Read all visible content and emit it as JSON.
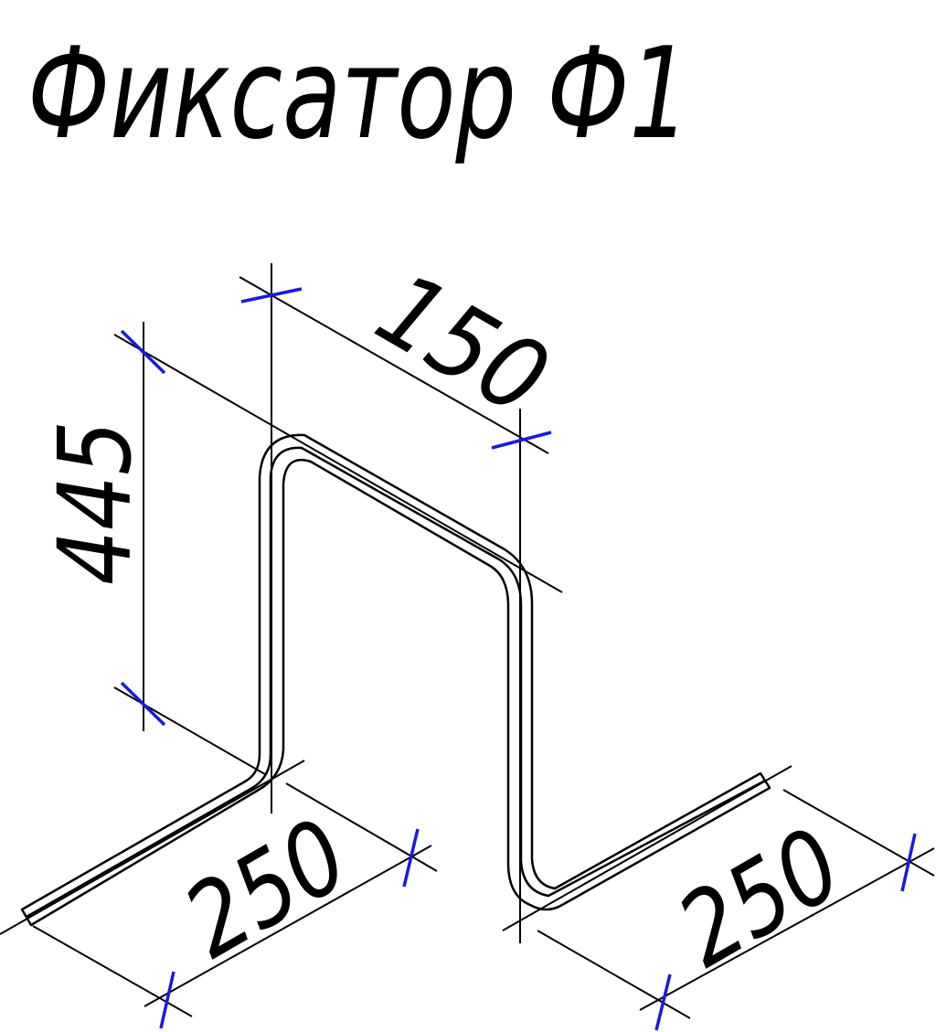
{
  "title": "Фиксатор Ф1",
  "dimensions": {
    "width_top": "150",
    "height": "445",
    "leg_left": "250",
    "leg_right": "250"
  },
  "colors": {
    "line": "#000000",
    "tick": "#1a1adf"
  }
}
